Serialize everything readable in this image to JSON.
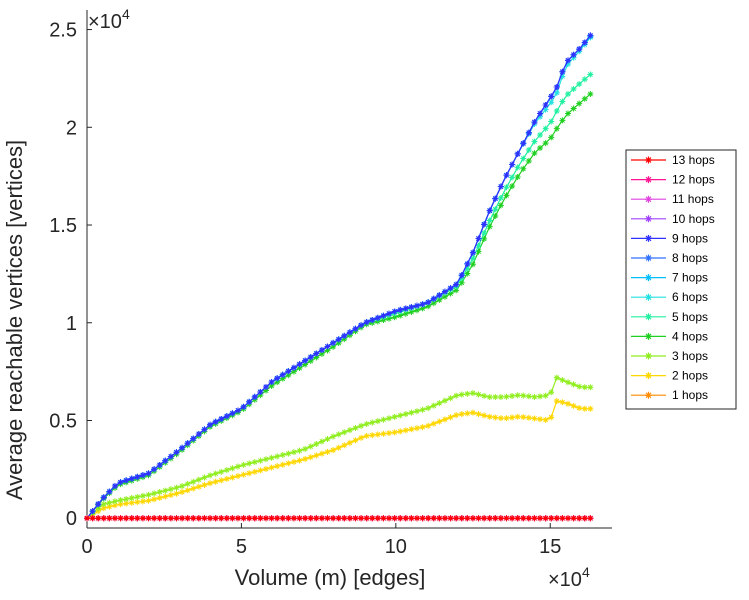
{
  "chart_data": {
    "type": "line",
    "title": "",
    "xlabel": "Volume (m) [edges]",
    "ylabel": "Average reachable vertices [vertices]",
    "xlim": [
      0,
      170000
    ],
    "ylim": [
      -500,
      26000
    ],
    "x_exponent_label": "×10",
    "x_exponent_power": "4",
    "y_exponent_label": "×10",
    "y_exponent_power": "4",
    "x_ticks": [
      {
        "value": 0,
        "label": "0"
      },
      {
        "value": 50000,
        "label": "5"
      },
      {
        "value": 100000,
        "label": "10"
      },
      {
        "value": 150000,
        "label": "15"
      }
    ],
    "y_ticks": [
      {
        "value": 0,
        "label": "0"
      },
      {
        "value": 5000,
        "label": "0.5"
      },
      {
        "value": 10000,
        "label": "1"
      },
      {
        "value": 15000,
        "label": "1.5"
      },
      {
        "value": 20000,
        "label": "2"
      },
      {
        "value": 25000,
        "label": "2.5"
      }
    ],
    "grid": false,
    "legend_position": "right",
    "x": [
      0,
      5000,
      10000,
      20000,
      30000,
      40000,
      50000,
      60000,
      70000,
      80000,
      90000,
      100000,
      110000,
      120000,
      125000,
      130000,
      135000,
      140000,
      145000,
      150000,
      152000,
      155000,
      160000,
      163000
    ],
    "series": [
      {
        "name": "13 hops",
        "color": "#ff0000",
        "values": [
          0,
          0,
          0,
          0,
          0,
          0,
          0,
          0,
          0,
          0,
          0,
          0,
          0,
          0,
          0,
          0,
          0,
          0,
          0,
          0,
          0,
          0,
          0,
          0
        ]
      },
      {
        "name": "12 hops",
        "color": "#ff1493",
        "values": [
          0,
          0,
          0,
          0,
          0,
          0,
          0,
          0,
          0,
          0,
          0,
          0,
          0,
          0,
          0,
          0,
          0,
          0,
          0,
          0,
          0,
          0,
          0,
          0
        ]
      },
      {
        "name": "11 hops",
        "color": "#e040e0",
        "values": [
          0,
          0,
          0,
          0,
          0,
          0,
          0,
          0,
          0,
          0,
          0,
          0,
          0,
          0,
          0,
          0,
          0,
          0,
          0,
          0,
          0,
          0,
          0,
          0
        ]
      },
      {
        "name": "10 hops",
        "color": "#a040ff",
        "values": [
          0,
          0,
          0,
          0,
          0,
          0,
          0,
          0,
          0,
          0,
          0,
          0,
          0,
          0,
          0,
          0,
          0,
          0,
          0,
          0,
          0,
          0,
          0,
          0
        ]
      },
      {
        "name": "9 hops",
        "color": "#3030ff",
        "values": [
          0,
          1000,
          1800,
          2300,
          3500,
          4800,
          5600,
          7000,
          8000,
          9000,
          10000,
          10600,
          11000,
          12000,
          13600,
          15600,
          17300,
          18800,
          20300,
          21500,
          22000,
          23300,
          24100,
          24700
        ]
      },
      {
        "name": "8 hops",
        "color": "#3070ff",
        "values": [
          0,
          1000,
          1800,
          2300,
          3500,
          4800,
          5600,
          7000,
          8000,
          9000,
          10000,
          10600,
          11000,
          12000,
          13600,
          15600,
          17300,
          18800,
          20300,
          21500,
          22000,
          23300,
          24100,
          24700
        ]
      },
      {
        "name": "7 hops",
        "color": "#00bfff",
        "values": [
          0,
          1000,
          1800,
          2300,
          3500,
          4800,
          5600,
          7000,
          8000,
          9000,
          10000,
          10600,
          11000,
          12000,
          13600,
          15600,
          17300,
          18800,
          20300,
          21500,
          22000,
          23300,
          24100,
          24650
        ]
      },
      {
        "name": "6 hops",
        "color": "#20e0e0",
        "values": [
          0,
          1000,
          1800,
          2300,
          3500,
          4800,
          5600,
          7000,
          8000,
          9000,
          10000,
          10600,
          11000,
          12000,
          13600,
          15600,
          17300,
          18800,
          20200,
          21200,
          21700,
          23100,
          24000,
          24600
        ]
      },
      {
        "name": "5 hops",
        "color": "#20f0a0",
        "values": [
          0,
          1000,
          1800,
          2300,
          3500,
          4800,
          5600,
          7000,
          8000,
          9000,
          10000,
          10500,
          11000,
          11900,
          13300,
          15100,
          16700,
          18100,
          19300,
          20200,
          20800,
          21600,
          22300,
          22700
        ]
      },
      {
        "name": "4 hops",
        "color": "#20d020",
        "values": [
          0,
          950,
          1700,
          2200,
          3400,
          4700,
          5500,
          6800,
          7800,
          8800,
          9900,
          10300,
          10800,
          11700,
          13000,
          14800,
          16300,
          17600,
          18700,
          19400,
          19900,
          20600,
          21300,
          21700
        ]
      },
      {
        "name": "3 hops",
        "color": "#90ee20",
        "values": [
          0,
          700,
          900,
          1200,
          1600,
          2200,
          2700,
          3100,
          3500,
          4200,
          4800,
          5200,
          5600,
          6300,
          6400,
          6200,
          6200,
          6300,
          6200,
          6300,
          7200,
          7000,
          6700,
          6700
        ]
      },
      {
        "name": "2 hops",
        "color": "#ffd700",
        "values": [
          0,
          500,
          700,
          900,
          1300,
          1800,
          2200,
          2600,
          3000,
          3500,
          4200,
          4400,
          4700,
          5300,
          5400,
          5200,
          5100,
          5200,
          5100,
          5000,
          6000,
          5900,
          5600,
          5600
        ]
      },
      {
        "name": "1 hops",
        "color": "#ff8c00",
        "values": [
          0,
          0,
          0,
          0,
          0,
          0,
          0,
          0,
          0,
          0,
          0,
          0,
          0,
          0,
          0,
          0,
          0,
          0,
          0,
          0,
          0,
          0,
          0,
          0
        ]
      }
    ]
  }
}
